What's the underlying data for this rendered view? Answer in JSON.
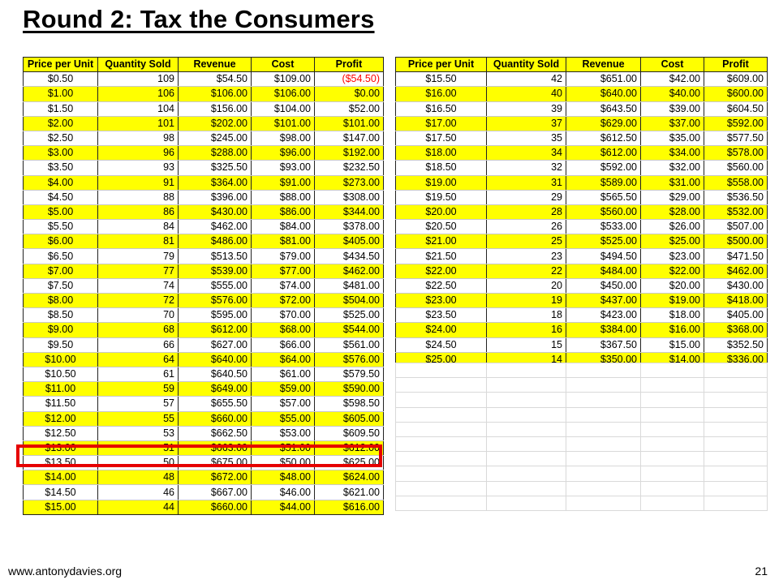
{
  "title": "Round 2: Tax the Consumers",
  "footer": {
    "url": "www.antonydavies.org",
    "page": "21"
  },
  "highlight_color": "#e60000",
  "row_colors": {
    "odd": "#ffffff",
    "even": "#ffff00"
  },
  "headers": [
    "Price per Unit",
    "Quantity Sold",
    "Revenue",
    "Cost",
    "Profit"
  ],
  "left_rows": [
    [
      "$0.50",
      "109",
      "$54.50",
      "$109.00",
      "($54.50)"
    ],
    [
      "$1.00",
      "106",
      "$106.00",
      "$106.00",
      "$0.00"
    ],
    [
      "$1.50",
      "104",
      "$156.00",
      "$104.00",
      "$52.00"
    ],
    [
      "$2.00",
      "101",
      "$202.00",
      "$101.00",
      "$101.00"
    ],
    [
      "$2.50",
      "98",
      "$245.00",
      "$98.00",
      "$147.00"
    ],
    [
      "$3.00",
      "96",
      "$288.00",
      "$96.00",
      "$192.00"
    ],
    [
      "$3.50",
      "93",
      "$325.50",
      "$93.00",
      "$232.50"
    ],
    [
      "$4.00",
      "91",
      "$364.00",
      "$91.00",
      "$273.00"
    ],
    [
      "$4.50",
      "88",
      "$396.00",
      "$88.00",
      "$308.00"
    ],
    [
      "$5.00",
      "86",
      "$430.00",
      "$86.00",
      "$344.00"
    ],
    [
      "$5.50",
      "84",
      "$462.00",
      "$84.00",
      "$378.00"
    ],
    [
      "$6.00",
      "81",
      "$486.00",
      "$81.00",
      "$405.00"
    ],
    [
      "$6.50",
      "79",
      "$513.50",
      "$79.00",
      "$434.50"
    ],
    [
      "$7.00",
      "77",
      "$539.00",
      "$77.00",
      "$462.00"
    ],
    [
      "$7.50",
      "74",
      "$555.00",
      "$74.00",
      "$481.00"
    ],
    [
      "$8.00",
      "72",
      "$576.00",
      "$72.00",
      "$504.00"
    ],
    [
      "$8.50",
      "70",
      "$595.00",
      "$70.00",
      "$525.00"
    ],
    [
      "$9.00",
      "68",
      "$612.00",
      "$68.00",
      "$544.00"
    ],
    [
      "$9.50",
      "66",
      "$627.00",
      "$66.00",
      "$561.00"
    ],
    [
      "$10.00",
      "64",
      "$640.00",
      "$64.00",
      "$576.00"
    ],
    [
      "$10.50",
      "61",
      "$640.50",
      "$61.00",
      "$579.50"
    ],
    [
      "$11.00",
      "59",
      "$649.00",
      "$59.00",
      "$590.00"
    ],
    [
      "$11.50",
      "57",
      "$655.50",
      "$57.00",
      "$598.50"
    ],
    [
      "$12.00",
      "55",
      "$660.00",
      "$55.00",
      "$605.00"
    ],
    [
      "$12.50",
      "53",
      "$662.50",
      "$53.00",
      "$609.50"
    ],
    [
      "$13.00",
      "51",
      "$663.00",
      "$51.00",
      "$612.00"
    ],
    [
      "$13.50",
      "50",
      "$675.00",
      "$50.00",
      "$625.00"
    ],
    [
      "$14.00",
      "48",
      "$672.00",
      "$48.00",
      "$624.00"
    ],
    [
      "$14.50",
      "46",
      "$667.00",
      "$46.00",
      "$621.00"
    ],
    [
      "$15.00",
      "44",
      "$660.00",
      "$44.00",
      "$616.00"
    ]
  ],
  "right_rows": [
    [
      "$15.50",
      "42",
      "$651.00",
      "$42.00",
      "$609.00"
    ],
    [
      "$16.00",
      "40",
      "$640.00",
      "$40.00",
      "$600.00"
    ],
    [
      "$16.50",
      "39",
      "$643.50",
      "$39.00",
      "$604.50"
    ],
    [
      "$17.00",
      "37",
      "$629.00",
      "$37.00",
      "$592.00"
    ],
    [
      "$17.50",
      "35",
      "$612.50",
      "$35.00",
      "$577.50"
    ],
    [
      "$18.00",
      "34",
      "$612.00",
      "$34.00",
      "$578.00"
    ],
    [
      "$18.50",
      "32",
      "$592.00",
      "$32.00",
      "$560.00"
    ],
    [
      "$19.00",
      "31",
      "$589.00",
      "$31.00",
      "$558.00"
    ],
    [
      "$19.50",
      "29",
      "$565.50",
      "$29.00",
      "$536.50"
    ],
    [
      "$20.00",
      "28",
      "$560.00",
      "$28.00",
      "$532.00"
    ],
    [
      "$20.50",
      "26",
      "$533.00",
      "$26.00",
      "$507.00"
    ],
    [
      "$21.00",
      "25",
      "$525.00",
      "$25.00",
      "$500.00"
    ],
    [
      "$21.50",
      "23",
      "$494.50",
      "$23.00",
      "$471.50"
    ],
    [
      "$22.00",
      "22",
      "$484.00",
      "$22.00",
      "$462.00"
    ],
    [
      "$22.50",
      "20",
      "$450.00",
      "$20.00",
      "$430.00"
    ],
    [
      "$23.00",
      "19",
      "$437.00",
      "$19.00",
      "$418.00"
    ],
    [
      "$23.50",
      "18",
      "$423.00",
      "$18.00",
      "$405.00"
    ],
    [
      "$24.00",
      "16",
      "$384.00",
      "$16.00",
      "$368.00"
    ],
    [
      "$24.50",
      "15",
      "$367.50",
      "$15.00",
      "$352.50"
    ],
    [
      "$25.00",
      "14",
      "$350.00",
      "$14.00",
      "$336.00"
    ]
  ],
  "negative_text_color": "#ff0000",
  "highlight_row_price": "$13.50"
}
